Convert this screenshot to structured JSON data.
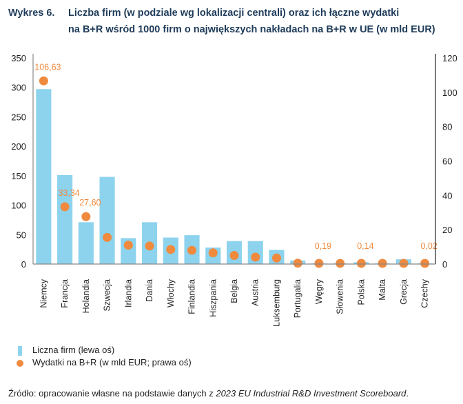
{
  "figure": {
    "number": "Wykres 6.",
    "title_line1": "Liczba firm (w podziale wg lokalizacji centrali) oraz ich łączne wydatki",
    "title_line2": "na B+R wśród 1000 firm o największych nakładach na B+R w UE (w mld EUR)",
    "source_prefix": "Źródło: opracowanie własne na podstawie danych z ",
    "source_italic": "2023 EU Industrial R&D Investment Scoreboard",
    "source_suffix": "."
  },
  "colors": {
    "bars": "#8dd3ee",
    "dots": "#ef8a3e",
    "title": "#1f3c5a",
    "axis": "#888888"
  },
  "legend": {
    "bars_label": "Liczna firm (lewa oś)",
    "dots_label": "Wydatki na B+R (w mld EUR; prawa oś)"
  },
  "chart_data": {
    "type": "bar",
    "title": "Liczba firm (w podziale wg lokalizacji centrali) oraz ich łączne wydatki na B+R wśród 1000 firm o największych nakładach na B+R w UE (w mld EUR)",
    "xlabel": "",
    "ylabel": "",
    "legend_position": "bottom-left",
    "grid": false,
    "categories": [
      "Niemcy",
      "Francja",
      "Holandia",
      "Szwecja",
      "Irlandia",
      "Dania",
      "Włochy",
      "Finlandia",
      "Hiszpania",
      "Belgia",
      "Austria",
      "Luksemburg",
      "Portugalia",
      "Węgry",
      "Słowenia",
      "Polska",
      "Malta",
      "Grecja",
      "Czechy"
    ],
    "left_axis": {
      "ylim": [
        0,
        350
      ],
      "ticks": [
        "0",
        "50",
        "100",
        "150",
        "200",
        "250",
        "300",
        "350"
      ],
      "tick_values": [
        0,
        50,
        100,
        150,
        200,
        250,
        300,
        350
      ]
    },
    "right_axis": {
      "ylim": [
        0,
        120
      ],
      "ticks": [
        "0",
        "20",
        "40",
        "60",
        "80",
        "100",
        "120"
      ],
      "tick_values": [
        0,
        20,
        40,
        60,
        80,
        100,
        120
      ]
    },
    "series": [
      {
        "name": "Liczna firm (lewa oś)",
        "type": "bar",
        "axis": "left",
        "values": [
          297,
          151,
          71,
          148,
          44,
          71,
          45,
          49,
          28,
          39,
          39,
          24,
          6,
          1,
          1,
          3,
          1,
          8,
          1
        ]
      },
      {
        "name": "Wydatki na B+R (w mld EUR; prawa oś)",
        "type": "scatter",
        "axis": "right",
        "values": [
          106.63,
          33.34,
          27.6,
          15.5,
          11.0,
          10.5,
          8.5,
          8.0,
          6.5,
          5.0,
          4.0,
          3.5,
          0.5,
          0.19,
          0.3,
          0.14,
          0.1,
          0.4,
          0.02
        ]
      }
    ],
    "data_labels": [
      {
        "index": 0,
        "text": "106,63"
      },
      {
        "index": 1,
        "text": "33,34"
      },
      {
        "index": 2,
        "text": "27,60"
      },
      {
        "index": 13,
        "text": "0,19"
      },
      {
        "index": 15,
        "text": "0,14"
      },
      {
        "index": 18,
        "text": "0,02"
      }
    ]
  }
}
